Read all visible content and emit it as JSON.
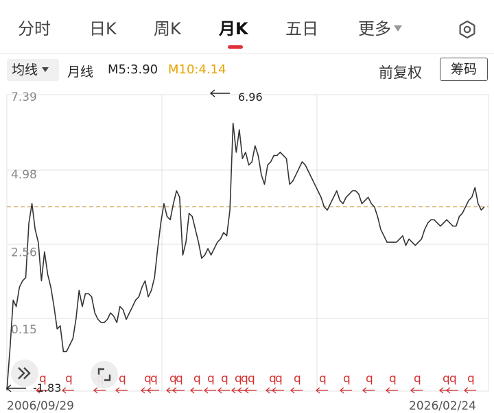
{
  "tabs": [
    {
      "label": "分时",
      "active": false
    },
    {
      "label": "日K",
      "active": false
    },
    {
      "label": "周K",
      "active": false
    },
    {
      "label": "月K",
      "active": true
    },
    {
      "label": "五日",
      "active": false
    },
    {
      "label": "更多",
      "active": false
    }
  ],
  "settings_icon": "gear-icon",
  "indicator_bar": {
    "ma_selector": "均线",
    "period_label": "月线",
    "ma5": "M5:3.90",
    "ma10": "M10:4.14",
    "restore_right": "前复权",
    "chips_button": "筹码"
  },
  "chart_data": {
    "type": "line",
    "y_tick_labels": [
      "7.39",
      "4.98",
      "2.56",
      "0.15"
    ],
    "y_ticks": [
      7.39,
      4.98,
      2.56,
      0.15
    ],
    "ylim": [
      -1.83,
      7.39
    ],
    "max_marker": "6.96",
    "min_marker": "-1.83",
    "max_value": 6.96,
    "min_value": -1.83,
    "current_price_line": 3.9,
    "start_date": "2006/09/29",
    "end_date": "2026/02/24",
    "series_color": "#333333",
    "reference_line_color": "#c89a40",
    "event_marker_color": "#d53030",
    "values": [
      -1.8,
      -0.5,
      1.0,
      0.8,
      1.4,
      1.6,
      1.7,
      3.4,
      4.0,
      3.2,
      2.8,
      1.6,
      2.5,
      1.8,
      1.4,
      0.8,
      0.1,
      0.2,
      -0.6,
      -0.6,
      -0.4,
      -0.2,
      0.4,
      1.3,
      0.8,
      1.2,
      1.2,
      1.1,
      0.6,
      0.4,
      0.3,
      0.3,
      0.4,
      0.6,
      0.5,
      0.3,
      0.8,
      0.7,
      0.4,
      0.6,
      0.8,
      1.0,
      1.1,
      1.4,
      1.6,
      1.1,
      1.3,
      1.7,
      2.6,
      3.4,
      4.0,
      3.6,
      3.5,
      4.0,
      4.4,
      4.2,
      2.4,
      2.8,
      3.7,
      3.6,
      3.2,
      2.8,
      2.3,
      2.4,
      2.6,
      2.4,
      2.6,
      2.8,
      2.9,
      3.1,
      3.0,
      3.8,
      6.5,
      5.6,
      6.3,
      5.4,
      5.6,
      5.2,
      5.3,
      5.8,
      5.5,
      4.9,
      4.6,
      5.2,
      5.3,
      5.5,
      5.5,
      5.6,
      5.5,
      5.4,
      4.6,
      4.7,
      4.9,
      5.1,
      5.3,
      5.2,
      5.0,
      4.8,
      4.6,
      4.4,
      4.2,
      3.9,
      3.8,
      4.0,
      4.2,
      4.4,
      4.1,
      4.0,
      4.2,
      4.3,
      4.4,
      4.4,
      4.3,
      4.0,
      4.1,
      4.2,
      4.0,
      3.9,
      3.6,
      3.2,
      3.0,
      2.8,
      2.8,
      2.8,
      2.8,
      2.9,
      3.0,
      2.7,
      2.9,
      2.8,
      2.7,
      2.8,
      2.9,
      3.2,
      3.4,
      3.5,
      3.5,
      3.4,
      3.3,
      3.4,
      3.5,
      3.4,
      3.3,
      3.3,
      3.6,
      3.7,
      3.9,
      4.1,
      4.2,
      4.5,
      4.0,
      3.8,
      3.9
    ]
  }
}
